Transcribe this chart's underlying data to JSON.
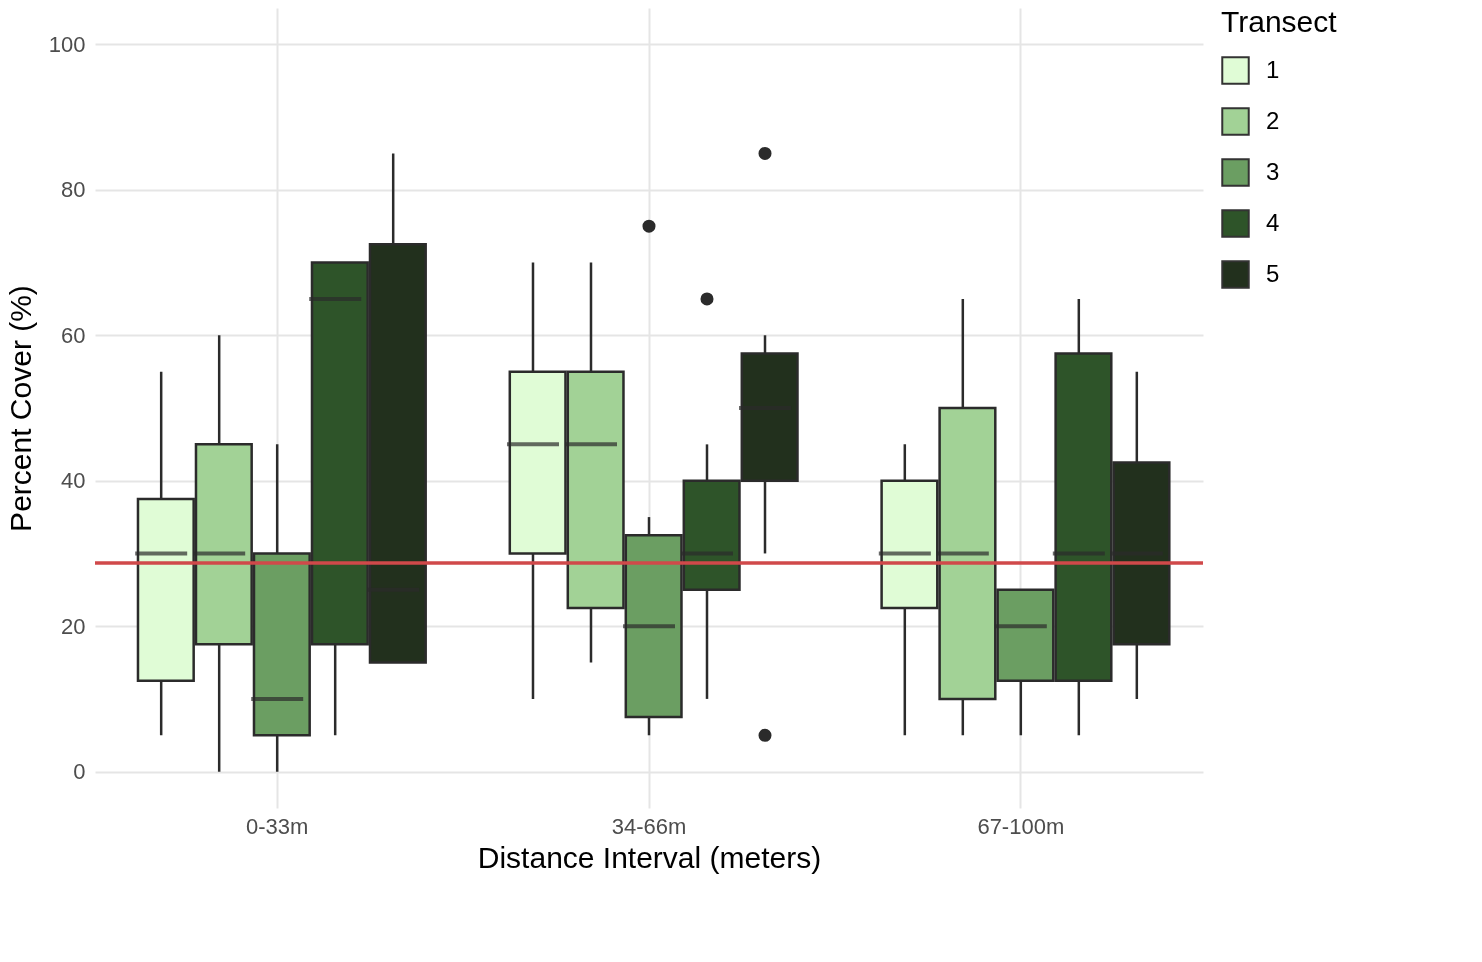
{
  "chart_data": {
    "type": "box",
    "xlabel": "Distance Interval (meters)",
    "ylabel": "Percent Cover (%)",
    "legend_title": "Transect",
    "categories": [
      "0-33m",
      "34-66m",
      "67-100m"
    ],
    "ylim": [
      -5,
      105
    ],
    "yticks": [
      0,
      20,
      40,
      60,
      80,
      100
    ],
    "grid": true,
    "legend": "right",
    "series": [
      {
        "name": "1",
        "color": "#e0fcd6",
        "boxes": [
          {
            "low": 5,
            "q1": 12.5,
            "median": 30,
            "q3": 37.5,
            "high": 55
          },
          {
            "low": 10,
            "q1": 30,
            "median": 45,
            "q3": 55,
            "high": 70
          },
          {
            "low": 5,
            "q1": 22.5,
            "median": 30,
            "q3": 40,
            "high": 45
          }
        ]
      },
      {
        "name": "2",
        "color": "#a2d296",
        "boxes": [
          {
            "low": 0,
            "q1": 17.5,
            "median": 30,
            "q3": 45,
            "high": 60
          },
          {
            "low": 15,
            "q1": 22.5,
            "median": 45,
            "q3": 55,
            "high": 70
          },
          {
            "low": 5,
            "q1": 10,
            "median": 30,
            "q3": 50,
            "high": 65
          }
        ]
      },
      {
        "name": "3",
        "color": "#6b9e62",
        "boxes": [
          {
            "low": 0,
            "q1": 5,
            "median": 10,
            "q3": 30,
            "high": 45
          },
          {
            "low": 5,
            "q1": 7.5,
            "median": 20,
            "q3": 32.5,
            "high": 35,
            "outliers": [
              75
            ]
          },
          {
            "low": 5,
            "q1": 12.5,
            "median": 20,
            "q3": 25,
            "high": 25
          }
        ]
      },
      {
        "name": "4",
        "color": "#2e5429",
        "boxes": [
          {
            "low": 5,
            "q1": 17.5,
            "median": 65,
            "q3": 70,
            "high": 70
          },
          {
            "low": 10,
            "q1": 25,
            "median": 30,
            "q3": 40,
            "high": 45,
            "outliers": [
              65
            ]
          },
          {
            "low": 5,
            "q1": 12.5,
            "median": 30,
            "q3": 57.5,
            "high": 65
          }
        ]
      },
      {
        "name": "5",
        "color": "#22301d",
        "boxes": [
          {
            "low": 15,
            "q1": 15,
            "median": 25,
            "q3": 72.5,
            "high": 85
          },
          {
            "low": 30,
            "q1": 40,
            "median": 50,
            "q3": 57.5,
            "high": 60,
            "outliers": [
              85,
              5
            ]
          },
          {
            "low": 10,
            "q1": 17.5,
            "median": 30,
            "q3": 42.5,
            "high": 55
          }
        ]
      }
    ],
    "ref_lines": [
      {
        "axis": "y",
        "value": 28.7,
        "color": "#d0494a"
      }
    ]
  }
}
